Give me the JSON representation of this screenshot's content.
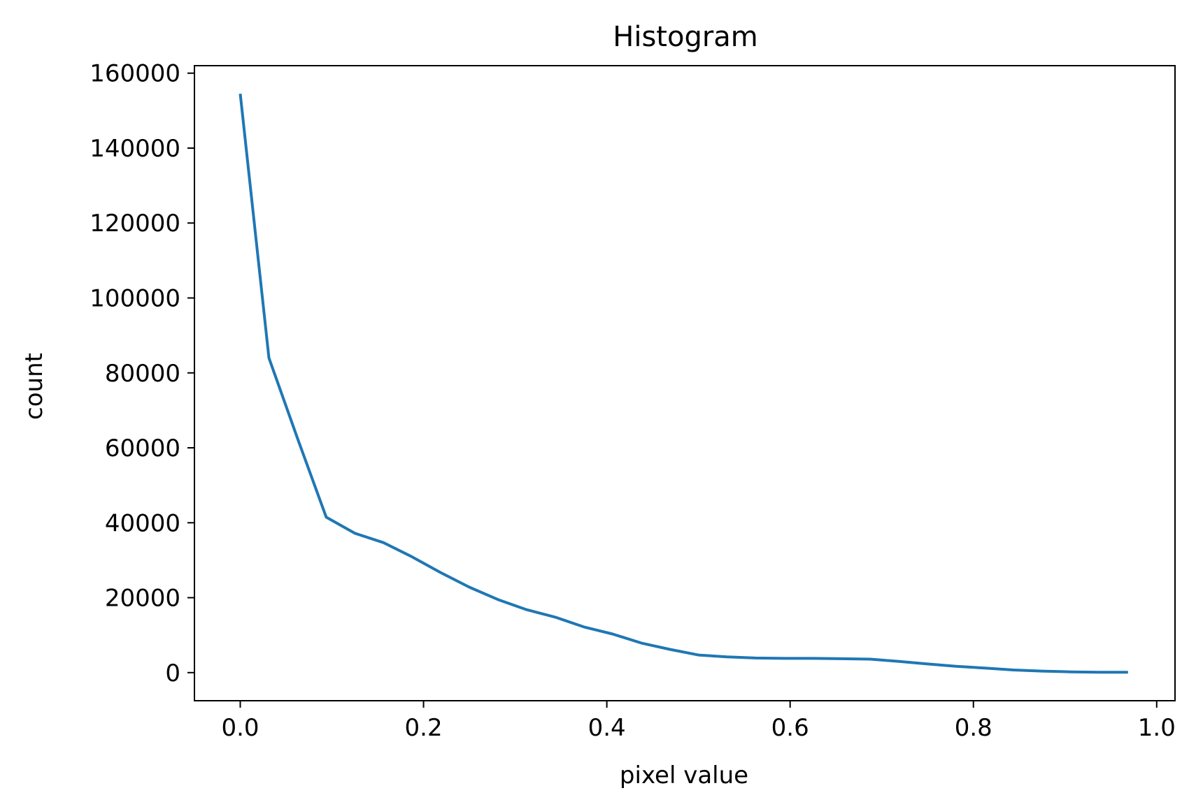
{
  "chart_data": {
    "type": "line",
    "title": "Histogram",
    "xlabel": "pixel value",
    "ylabel": "count",
    "xlim": [
      -0.05,
      1.02
    ],
    "ylim": [
      -7500,
      162000
    ],
    "x_ticks": [
      0.0,
      0.2,
      0.4,
      0.6,
      0.8,
      1.0
    ],
    "x_tick_labels": [
      "0.0",
      "0.2",
      "0.4",
      "0.6",
      "0.8",
      "1.0"
    ],
    "y_ticks": [
      0,
      20000,
      40000,
      60000,
      80000,
      100000,
      120000,
      140000,
      160000
    ],
    "y_tick_labels": [
      "0",
      "20000",
      "40000",
      "60000",
      "80000",
      "100000",
      "120000",
      "140000",
      "160000"
    ],
    "grid": false,
    "series": [
      {
        "color": "#1f77b4",
        "x": [
          0.0,
          0.03125,
          0.0625,
          0.09375,
          0.125,
          0.15625,
          0.1875,
          0.21875,
          0.25,
          0.28125,
          0.3125,
          0.34375,
          0.375,
          0.40625,
          0.4375,
          0.46875,
          0.5,
          0.53125,
          0.5625,
          0.59375,
          0.625,
          0.65625,
          0.6875,
          0.71875,
          0.75,
          0.78125,
          0.8125,
          0.84375,
          0.875,
          0.90625,
          0.9375,
          0.96875
        ],
        "y": [
          154500,
          84000,
          62500,
          41500,
          37200,
          34700,
          30900,
          26700,
          22800,
          19500,
          16800,
          14800,
          12200,
          10300,
          7900,
          6200,
          4700,
          4200,
          3900,
          3800,
          3800,
          3700,
          3600,
          3000,
          2300,
          1700,
          1200,
          700,
          400,
          200,
          100,
          80
        ]
      }
    ]
  }
}
